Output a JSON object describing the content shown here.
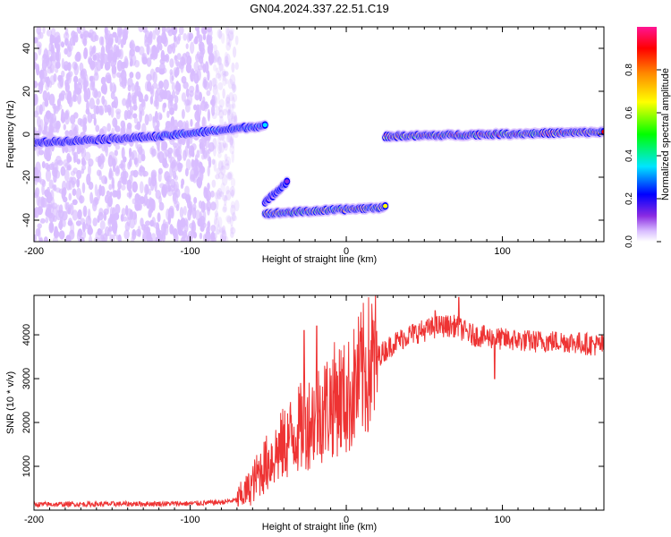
{
  "title": "GN04.2024.337.22.51.C19",
  "chart_data": [
    {
      "type": "heatmap",
      "xlabel": "Height of straight line (km)",
      "ylabel": "Frequency (Hz)",
      "xlim": [
        -200,
        165
      ],
      "ylim": [
        -50,
        50
      ],
      "x_ticks": [
        -200,
        -100,
        0,
        100
      ],
      "y_ticks": [
        -40,
        -20,
        0,
        20,
        40
      ],
      "colorbar": {
        "label": "Normalized spectral amplitude",
        "range": [
          0,
          1
        ],
        "ticks": [
          "0.0",
          "0.2",
          "0.4",
          "0.6",
          "0.8"
        ],
        "colors": [
          "#ffffff",
          "#d8bcff",
          "#8a2be2",
          "#0000ff",
          "#00e5ff",
          "#00ff00",
          "#ffff00",
          "#ff8c00",
          "#ff0000",
          "#ff1493"
        ]
      },
      "features": [
        {
          "kind": "noise",
          "x": [
            -200,
            -70
          ],
          "y": [
            -50,
            50
          ],
          "amplitude": 0.15
        },
        {
          "kind": "track",
          "x": [
            -200,
            -120
          ],
          "y": [
            -4,
            -1
          ],
          "amplitude": 0.3
        },
        {
          "kind": "track",
          "x": [
            -120,
            -52
          ],
          "y": [
            -1,
            4
          ],
          "amplitude": 0.45
        },
        {
          "kind": "track",
          "x": [
            -52,
            -38
          ],
          "y": [
            -32,
            -22
          ],
          "amplitude": 0.35
        },
        {
          "kind": "track",
          "x": [
            -52,
            25
          ],
          "y": [
            -37,
            -34
          ],
          "amplitude": 0.85
        },
        {
          "kind": "track",
          "x": [
            25,
            165
          ],
          "y": [
            -1,
            1
          ],
          "amplitude": 0.95
        }
      ]
    },
    {
      "type": "line",
      "xlabel": "Height of straight line (km)",
      "ylabel": "SNR (10 * v/v)",
      "xlim": [
        -200,
        165
      ],
      "ylim": [
        0,
        4900
      ],
      "x_ticks": [
        -200,
        -100,
        0,
        100
      ],
      "y_ticks": [
        1000,
        2000,
        3000,
        4000
      ],
      "color": "#ee3333",
      "trend": {
        "x": [
          -200,
          -150,
          -100,
          -80,
          -70,
          -62,
          -55,
          -45,
          -35,
          -25,
          -15,
          -5,
          0,
          10,
          20,
          30,
          40,
          50,
          60,
          70,
          80,
          100,
          120,
          140,
          165
        ],
        "y": [
          130,
          140,
          150,
          180,
          230,
          500,
          900,
          1300,
          1700,
          2000,
          2300,
          2600,
          2500,
          3100,
          3500,
          3800,
          4000,
          4100,
          4200,
          4200,
          4000,
          3900,
          3850,
          3850,
          3750
        ]
      },
      "spikes": [
        {
          "x": -27,
          "y": 4100
        },
        {
          "x": -19,
          "y": 4200
        },
        {
          "x": 72,
          "y": 4850
        },
        {
          "x": 57,
          "y": 4550
        },
        {
          "x": 95,
          "y": 3000
        }
      ]
    }
  ]
}
